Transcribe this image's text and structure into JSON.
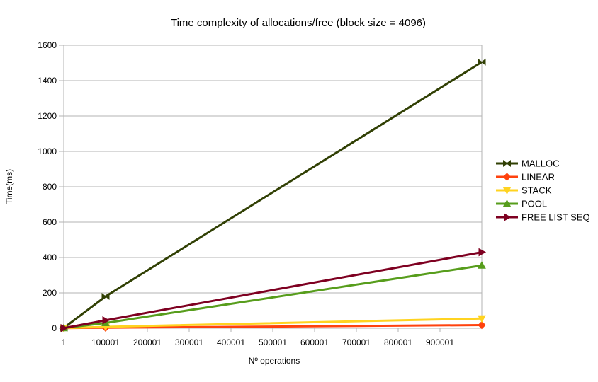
{
  "chart_data": {
    "type": "line",
    "title": "Time complexity of allocations/free (block size = 4096)",
    "xlabel": "Nº operations",
    "ylabel": "Time(ms)",
    "grid": true,
    "legend_position": "right",
    "xlim": [
      1,
      1000001
    ],
    "ylim": [
      0,
      1600
    ],
    "x": [
      1,
      100001,
      1000001
    ],
    "x_ticks": [
      {
        "value": 1,
        "label": "1"
      },
      {
        "value": 100001,
        "label": "100001"
      },
      {
        "value": 200001,
        "label": "200001"
      },
      {
        "value": 300001,
        "label": "300001"
      },
      {
        "value": 400001,
        "label": "400001"
      },
      {
        "value": 500001,
        "label": "500001"
      },
      {
        "value": 600001,
        "label": "600001"
      },
      {
        "value": 700001,
        "label": "700001"
      },
      {
        "value": 800001,
        "label": "800001"
      },
      {
        "value": 900001,
        "label": "900001"
      }
    ],
    "y_ticks": [
      {
        "value": 0,
        "label": "0"
      },
      {
        "value": 200,
        "label": "200"
      },
      {
        "value": 400,
        "label": "400"
      },
      {
        "value": 600,
        "label": "600"
      },
      {
        "value": 800,
        "label": "800"
      },
      {
        "value": 1000,
        "label": "1000"
      },
      {
        "value": 1200,
        "label": "1200"
      },
      {
        "value": 1400,
        "label": "1400"
      },
      {
        "value": 1600,
        "label": "1600"
      }
    ],
    "series": [
      {
        "name": "MALLOC",
        "color": "#314004",
        "marker": "bowtie",
        "values": [
          2,
          180,
          1505
        ]
      },
      {
        "name": "LINEAR",
        "color": "#ff420e",
        "marker": "diamond",
        "values": [
          1,
          3,
          18
        ]
      },
      {
        "name": "STACK",
        "color": "#ffd320",
        "marker": "triangle-down",
        "values": [
          1,
          8,
          55
        ]
      },
      {
        "name": "POOL",
        "color": "#579d1c",
        "marker": "triangle-up",
        "values": [
          1,
          30,
          355
        ]
      },
      {
        "name": "FREE LIST SEQ",
        "color": "#7e0021",
        "marker": "triangle-right",
        "values": [
          1,
          45,
          430
        ]
      }
    ],
    "grid_color": "#b3b3b3",
    "axis_color": "#b3b3b3"
  }
}
